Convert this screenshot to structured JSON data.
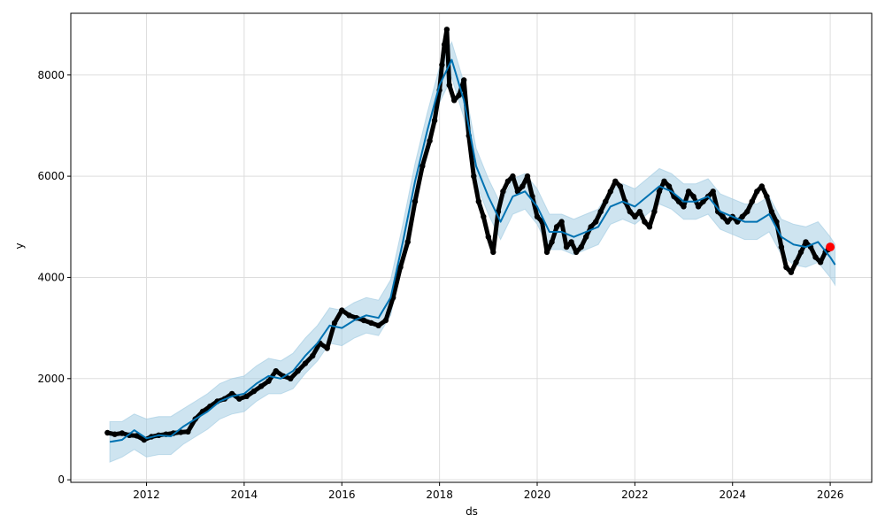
{
  "chart_data": {
    "type": "line",
    "xlabel": "ds",
    "ylabel": "y",
    "xlim": [
      2010.45,
      2026.85
    ],
    "ylim": [
      -50,
      9220
    ],
    "xticks": [
      2012,
      2014,
      2016,
      2018,
      2020,
      2022,
      2024,
      2026
    ],
    "xtick_labels": [
      "2012",
      "2014",
      "2016",
      "2018",
      "2020",
      "2022",
      "2024",
      "2026"
    ],
    "yticks": [
      0,
      2000,
      4000,
      6000,
      8000
    ],
    "ytick_labels": [
      "0",
      "2000",
      "4000",
      "6000",
      "8000"
    ],
    "grid": true,
    "colors": {
      "observed": "#000000",
      "forecast": "#0072B2",
      "interval": "#9ecae1",
      "highlight": "#ff0000"
    },
    "forecast": {
      "x": [
        2011.25,
        2011.5,
        2011.75,
        2012.0,
        2012.25,
        2012.5,
        2012.75,
        2013.0,
        2013.25,
        2013.5,
        2013.75,
        2014.0,
        2014.25,
        2014.5,
        2014.75,
        2015.0,
        2015.25,
        2015.5,
        2015.75,
        2016.0,
        2016.25,
        2016.5,
        2016.75,
        2017.0,
        2017.25,
        2017.5,
        2017.75,
        2018.0,
        2018.25,
        2018.5,
        2018.75,
        2019.0,
        2019.25,
        2019.5,
        2019.75,
        2020.0,
        2020.25,
        2020.5,
        2020.75,
        2021.0,
        2021.25,
        2021.5,
        2021.75,
        2022.0,
        2022.25,
        2022.5,
        2022.75,
        2023.0,
        2023.25,
        2023.5,
        2023.75,
        2024.0,
        2024.25,
        2024.5,
        2024.75,
        2025.0,
        2025.25,
        2025.5,
        2025.75,
        2026.0,
        2026.1
      ],
      "y": [
        750,
        790,
        980,
        820,
        880,
        860,
        1050,
        1200,
        1350,
        1550,
        1650,
        1700,
        1900,
        2050,
        2000,
        2150,
        2450,
        2700,
        3050,
        3000,
        3150,
        3250,
        3200,
        3600,
        4700,
        5900,
        6900,
        7800,
        8300,
        7500,
        6200,
        5600,
        5100,
        5600,
        5700,
        5400,
        4900,
        4900,
        4800,
        4900,
        5000,
        5400,
        5500,
        5400,
        5600,
        5800,
        5700,
        5500,
        5500,
        5600,
        5300,
        5200,
        5100,
        5100,
        5250,
        4800,
        4650,
        4600,
        4700,
        4400,
        4250
      ],
      "lower": [
        350,
        450,
        600,
        450,
        500,
        500,
        700,
        850,
        1000,
        1200,
        1300,
        1350,
        1550,
        1700,
        1700,
        1800,
        2100,
        2350,
        2700,
        2650,
        2800,
        2900,
        2850,
        3250,
        4350,
        5550,
        6550,
        7450,
        7950,
        7150,
        5850,
        5250,
        4750,
        5250,
        5350,
        5050,
        4550,
        4550,
        4450,
        4550,
        4650,
        5050,
        5150,
        5050,
        5250,
        5450,
        5350,
        5150,
        5150,
        5250,
        4950,
        4850,
        4750,
        4750,
        4900,
        4450,
        4250,
        4200,
        4300,
        4000,
        3850
      ],
      "upper": [
        1150,
        1150,
        1300,
        1200,
        1250,
        1250,
        1400,
        1550,
        1700,
        1900,
        2000,
        2050,
        2250,
        2400,
        2350,
        2500,
        2800,
        3050,
        3400,
        3350,
        3500,
        3600,
        3550,
        3950,
        5050,
        6250,
        7250,
        8150,
        8650,
        7850,
        6550,
        5950,
        5450,
        5950,
        6050,
        5750,
        5250,
        5250,
        5150,
        5250,
        5350,
        5750,
        5850,
        5750,
        5950,
        6150,
        6050,
        5850,
        5850,
        5950,
        5650,
        5550,
        5450,
        5450,
        5600,
        5150,
        5050,
        5000,
        5100,
        4800,
        4650
      ]
    },
    "observed": {
      "x": [
        2011.2,
        2011.35,
        2011.5,
        2011.65,
        2011.8,
        2011.95,
        2012.1,
        2012.25,
        2012.4,
        2012.55,
        2012.7,
        2012.85,
        2013.0,
        2013.15,
        2013.3,
        2013.45,
        2013.6,
        2013.75,
        2013.9,
        2014.05,
        2014.2,
        2014.35,
        2014.5,
        2014.65,
        2014.8,
        2014.95,
        2015.1,
        2015.25,
        2015.4,
        2015.55,
        2015.7,
        2015.85,
        2016.0,
        2016.15,
        2016.3,
        2016.45,
        2016.6,
        2016.75,
        2016.9,
        2017.05,
        2017.2,
        2017.35,
        2017.5,
        2017.65,
        2017.8,
        2017.9,
        2018.0,
        2018.05,
        2018.1,
        2018.15,
        2018.2,
        2018.3,
        2018.4,
        2018.5,
        2018.6,
        2018.7,
        2018.8,
        2018.9,
        2019.0,
        2019.1,
        2019.2,
        2019.3,
        2019.4,
        2019.5,
        2019.6,
        2019.7,
        2019.8,
        2019.9,
        2020.0,
        2020.1,
        2020.2,
        2020.3,
        2020.4,
        2020.5,
        2020.6,
        2020.7,
        2020.8,
        2020.9,
        2021.0,
        2021.1,
        2021.2,
        2021.3,
        2021.4,
        2021.5,
        2021.6,
        2021.7,
        2021.8,
        2021.9,
        2022.0,
        2022.1,
        2022.2,
        2022.3,
        2022.4,
        2022.5,
        2022.6,
        2022.7,
        2022.8,
        2022.9,
        2023.0,
        2023.1,
        2023.2,
        2023.3,
        2023.4,
        2023.5,
        2023.6,
        2023.7,
        2023.8,
        2023.9,
        2024.0,
        2024.1,
        2024.2,
        2024.3,
        2024.4,
        2024.5,
        2024.6,
        2024.7,
        2024.8,
        2024.9,
        2025.0,
        2025.1,
        2025.2,
        2025.3,
        2025.4,
        2025.5,
        2025.6,
        2025.7,
        2025.8,
        2025.9,
        2025.96
      ],
      "y": [
        930,
        900,
        920,
        880,
        870,
        790,
        850,
        880,
        900,
        920,
        940,
        950,
        1200,
        1350,
        1450,
        1550,
        1600,
        1700,
        1600,
        1650,
        1750,
        1850,
        1950,
        2150,
        2050,
        2000,
        2150,
        2300,
        2450,
        2700,
        2600,
        3100,
        3350,
        3250,
        3200,
        3150,
        3100,
        3050,
        3150,
        3600,
        4200,
        4700,
        5500,
        6200,
        6700,
        7100,
        7700,
        8200,
        8600,
        8900,
        7800,
        7500,
        7600,
        7900,
        6800,
        6000,
        5500,
        5200,
        4800,
        4500,
        5300,
        5700,
        5900,
        6000,
        5700,
        5800,
        6000,
        5600,
        5200,
        5100,
        4500,
        4700,
        5000,
        5100,
        4600,
        4700,
        4500,
        4600,
        4800,
        5000,
        5100,
        5300,
        5500,
        5700,
        5900,
        5800,
        5500,
        5300,
        5200,
        5300,
        5100,
        5000,
        5300,
        5700,
        5900,
        5800,
        5600,
        5500,
        5400,
        5700,
        5600,
        5400,
        5500,
        5600,
        5700,
        5300,
        5200,
        5100,
        5200,
        5100,
        5200,
        5300,
        5500,
        5700,
        5800,
        5600,
        5300,
        5100,
        4600,
        4200,
        4100,
        4300,
        4500,
        4700,
        4600,
        4400,
        4300,
        4500,
        4550
      ]
    },
    "highlight_point": {
      "x": 2026.0,
      "y": 4600
    }
  }
}
